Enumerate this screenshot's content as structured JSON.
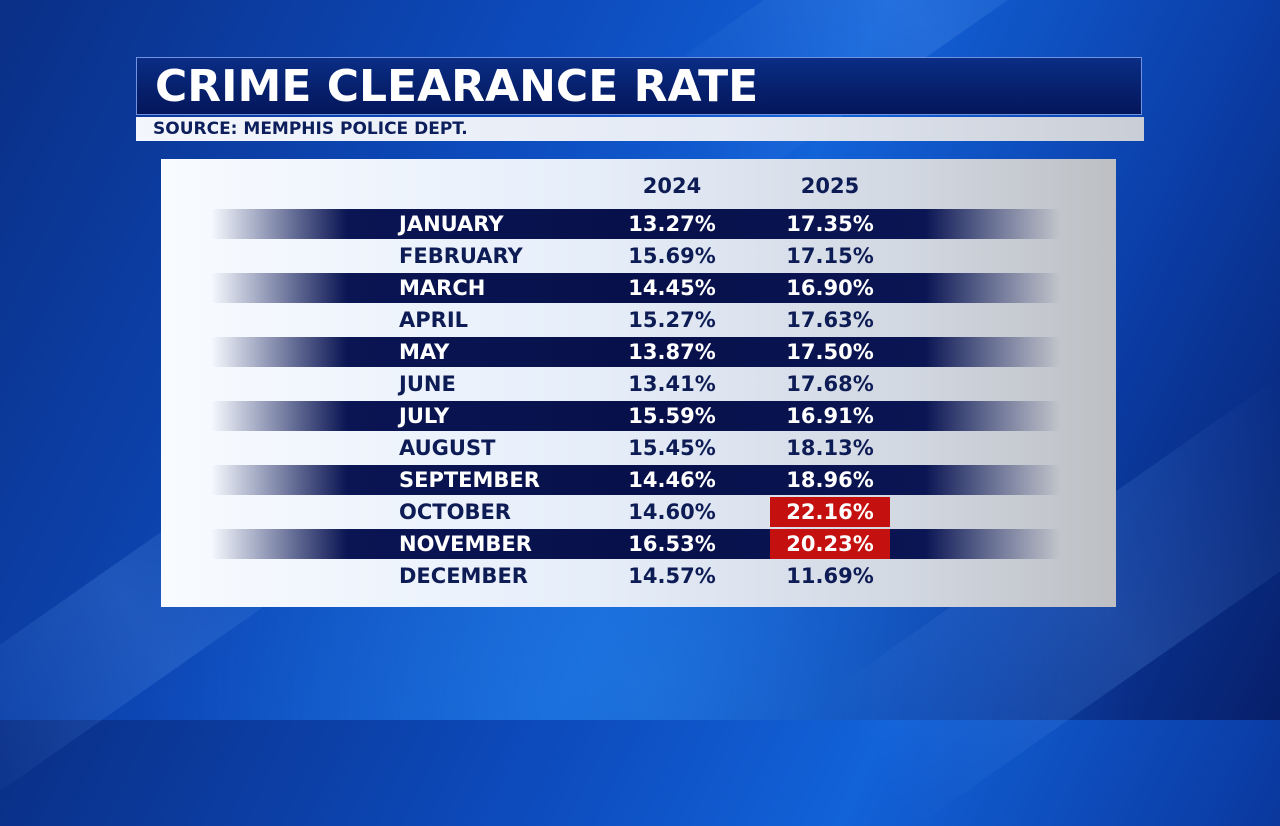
{
  "header": {
    "title": "CRIME CLEARANCE RATE",
    "source": "SOURCE: MEMPHIS POLICE DEPT."
  },
  "colors": {
    "title_bar": "#04165a",
    "dark_stripe": "#07104a",
    "highlight": "#c4100f",
    "text_dark": "#0d1c55"
  },
  "chart_data": {
    "type": "table",
    "title": "CRIME CLEARANCE RATE",
    "columns": [
      "2024",
      "2025"
    ],
    "rows": [
      {
        "month": "JANUARY",
        "y2024": "13.27%",
        "y2025": "17.35%",
        "highlight": false
      },
      {
        "month": "FEBRUARY",
        "y2024": "15.69%",
        "y2025": "17.15%",
        "highlight": false
      },
      {
        "month": "MARCH",
        "y2024": "14.45%",
        "y2025": "16.90%",
        "highlight": false
      },
      {
        "month": "APRIL",
        "y2024": "15.27%",
        "y2025": "17.63%",
        "highlight": false
      },
      {
        "month": "MAY",
        "y2024": "13.87%",
        "y2025": "17.50%",
        "highlight": false
      },
      {
        "month": "JUNE",
        "y2024": "13.41%",
        "y2025": "17.68%",
        "highlight": false
      },
      {
        "month": "JULY",
        "y2024": "15.59%",
        "y2025": "16.91%",
        "highlight": false
      },
      {
        "month": "AUGUST",
        "y2024": "15.45%",
        "y2025": "18.13%",
        "highlight": false
      },
      {
        "month": "SEPTEMBER",
        "y2024": "14.46%",
        "y2025": "18.96%",
        "highlight": false
      },
      {
        "month": "OCTOBER",
        "y2024": "14.60%",
        "y2025": "22.16%",
        "highlight": true
      },
      {
        "month": "NOVEMBER",
        "y2024": "16.53%",
        "y2025": "20.23%",
        "highlight": true
      },
      {
        "month": "DECEMBER",
        "y2024": "14.57%",
        "y2025": "11.69%",
        "highlight": false
      }
    ]
  }
}
